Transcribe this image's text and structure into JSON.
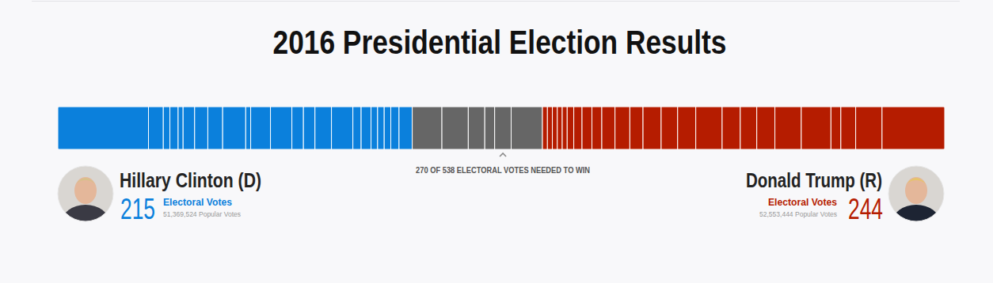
{
  "chart_data": {
    "type": "bar",
    "orientation": "horizontal",
    "stacked": true,
    "tick_labels": false,
    "title": "2016 Presidential Election Results",
    "xlim": [
      0,
      538
    ],
    "threshold": {
      "value": 270,
      "label": "270 OF 538 ELECTORAL VOTES NEEDED TO WIN"
    },
    "electoral_votes_label": "Electoral Votes",
    "series": [
      {
        "name": "Hillary Clinton (D)",
        "color": "#0b80dc",
        "electoral_votes": 215,
        "popular_votes": {
          "value": 51369524,
          "label": "51,369,524 Popular Votes"
        },
        "values": [
          55,
          9,
          4,
          5,
          3,
          7,
          8,
          9,
          14,
          3,
          12,
          13,
          7,
          7,
          10,
          13,
          5,
          6,
          4,
          4,
          4,
          5,
          8
        ]
      },
      {
        "color": "#666666",
        "values": [
          18,
          16,
          10,
          6,
          10,
          19
        ]
      },
      {
        "name": "Donald Trump (R)",
        "color": "#b51c00",
        "electoral_votes": 244,
        "popular_votes": {
          "value": 52553444,
          "label": "52,553,444 Popular Votes"
        },
        "values": [
          3,
          3,
          3,
          3,
          3,
          4,
          5,
          6,
          6,
          8,
          9,
          8,
          11,
          10,
          11,
          16,
          11,
          10,
          11,
          16,
          18,
          6,
          9,
          16,
          38
        ]
      }
    ]
  }
}
